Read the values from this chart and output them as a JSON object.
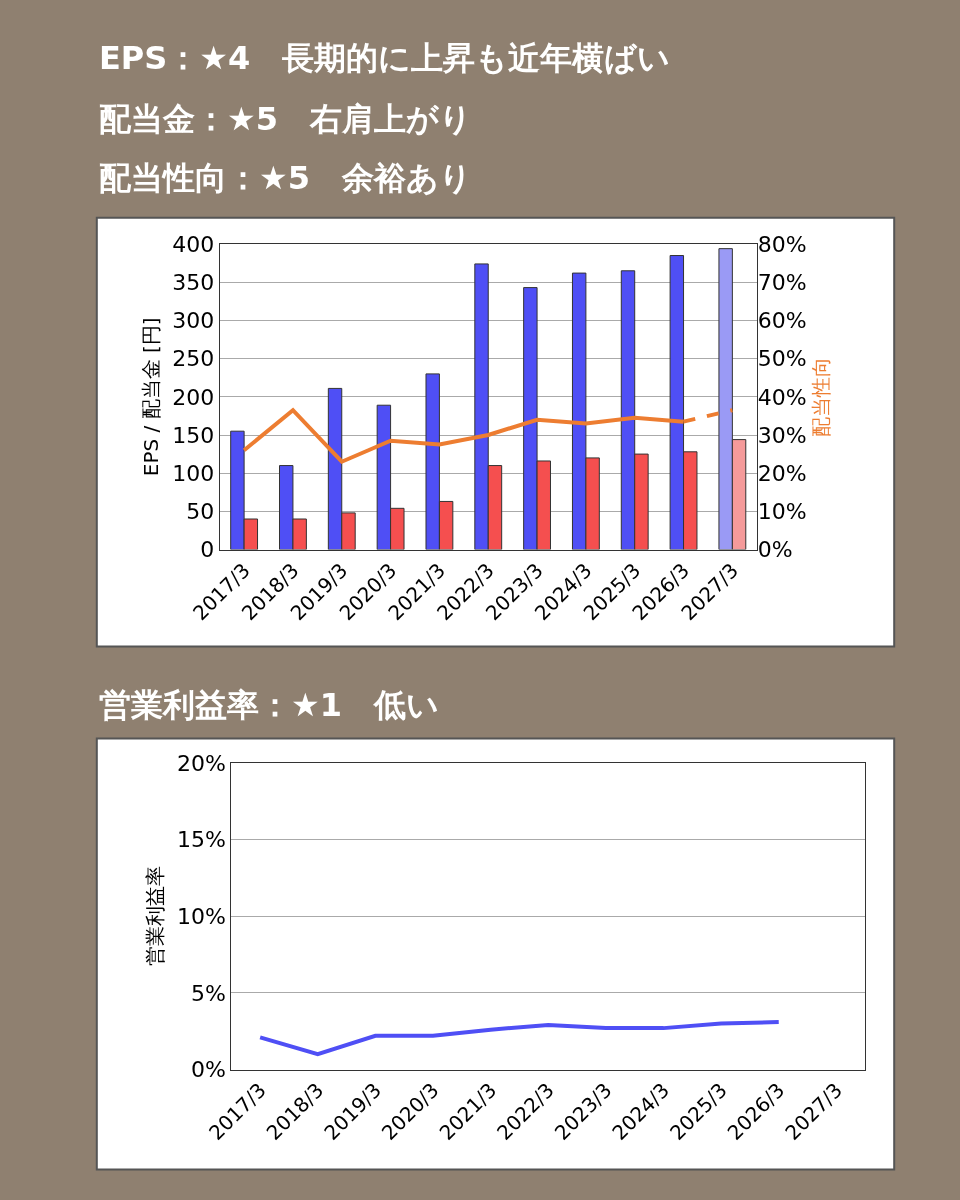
{
  "chart_data": [
    {
      "type": "bar",
      "title": "EPS：★4　長期的に上昇も近年横ばい",
      "subtitle": "配当金：★5　右肩上がり",
      "annotations": [
        "配当性向：★5　余裕あり"
      ],
      "ylabel": "EPS / 配当金 [円]",
      "y2label": "配当性向",
      "categories": [
        "2017/3",
        "2018/3",
        "2019/3",
        "2020/3",
        "2021/3",
        "2022/3",
        "2023/3",
        "2024/3",
        "2025/3",
        "2026/3",
        "2027/3"
      ],
      "series": [
        {
          "type": "bar",
          "color": "#4f4ff5",
          "colors": [
            "#4f4ff5",
            "#4f4ff5",
            "#4f4ff5",
            "#4f4ff5",
            "#4f4ff5",
            "#4f4ff5",
            "#4f4ff5",
            "#4f4ff5",
            "#4f4ff5",
            "#4f4ff5",
            "#9a9af5"
          ],
          "values": [
            155,
            110,
            211,
            189,
            230,
            374,
            343,
            362,
            365,
            385,
            394
          ]
        },
        {
          "type": "bar",
          "color": "#f54f4f",
          "colors": [
            "#f54f4f",
            "#f54f4f",
            "#f54f4f",
            "#f54f4f",
            "#f54f4f",
            "#f54f4f",
            "#f54f4f",
            "#f54f4f",
            "#f54f4f",
            "#f54f4f",
            "#f59a9a"
          ],
          "values": [
            40,
            40,
            48,
            54,
            63,
            110,
            116,
            120,
            125,
            128,
            144
          ]
        },
        {
          "type": "line",
          "axis": "y2",
          "color": "#ed7d31",
          "line_style": "solid",
          "values": [
            26,
            36.5,
            23,
            28.5,
            27.5,
            30,
            34,
            33,
            34.5,
            33.5,
            null
          ]
        },
        {
          "type": "line",
          "axis": "y2",
          "color": "#ed7d31",
          "line_style": "dashed",
          "values": [
            null,
            null,
            null,
            null,
            null,
            null,
            null,
            null,
            null,
            33.5,
            36.5
          ]
        }
      ],
      "ylim": [
        0,
        400
      ],
      "yticks": [
        0,
        50,
        100,
        150,
        200,
        250,
        300,
        350,
        400
      ],
      "y2lim": [
        0,
        80
      ],
      "y2ticks": [
        {
          "value": 0,
          "label": "0%"
        },
        {
          "value": 10,
          "label": "10%"
        },
        {
          "value": 20,
          "label": "20%"
        },
        {
          "value": 30,
          "label": "30%"
        },
        {
          "value": 40,
          "label": "40%"
        },
        {
          "value": 50,
          "label": "50%"
        },
        {
          "value": 60,
          "label": "60%"
        },
        {
          "value": 70,
          "label": "70%"
        },
        {
          "value": 80,
          "label": "80%"
        }
      ],
      "grid": "y",
      "marker": "none"
    },
    {
      "type": "line",
      "title": "営業利益率：★1　低い",
      "ylabel": "営業利益率",
      "categories": [
        "2017/3",
        "2018/3",
        "2019/3",
        "2020/3",
        "2021/3",
        "2022/3",
        "2023/3",
        "2024/3",
        "2025/3",
        "2026/3",
        "2027/3"
      ],
      "series": [
        {
          "color": "#4f4ff5",
          "values": [
            2.1,
            1.0,
            2.2,
            2.2,
            2.6,
            2.9,
            2.7,
            2.7,
            3.0,
            3.1,
            null
          ]
        }
      ],
      "ylim": [
        0,
        20
      ],
      "yticks": [
        {
          "value": 0,
          "label": "0%"
        },
        {
          "value": 5,
          "label": "5%"
        },
        {
          "value": 10,
          "label": "10%"
        },
        {
          "value": 15,
          "label": "15%"
        },
        {
          "value": 20,
          "label": "20%"
        }
      ],
      "grid": "y",
      "marker": "none",
      "line_style": "solid"
    }
  ]
}
